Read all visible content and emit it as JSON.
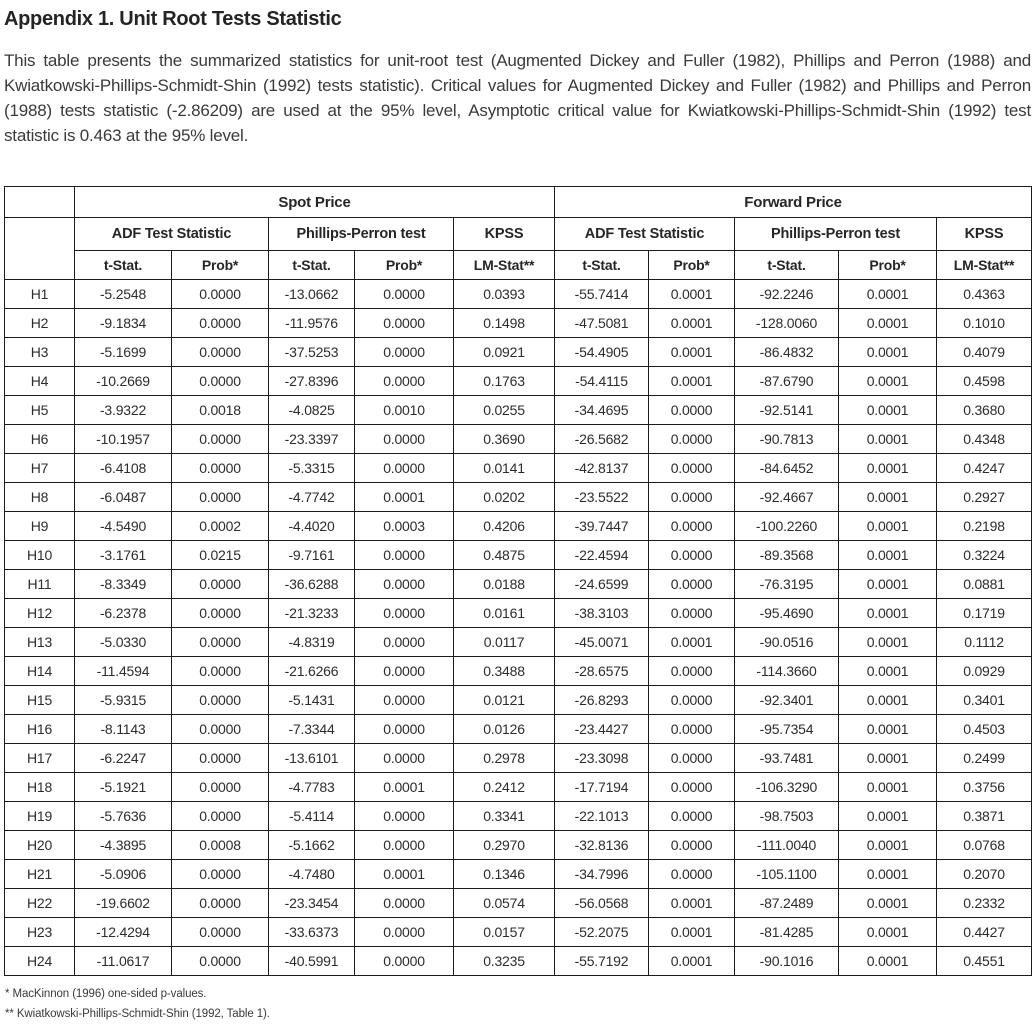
{
  "title": "Appendix 1. Unit Root Tests Statistic",
  "description": "This table presents the summarized statistics for unit-root test (Augmented Dickey and Fuller (1982), Phillips and Perron (1988) and Kwiatkowski-Phillips-Schmidt-Shin (1992) tests statistic). Critical values for Augmented Dickey and Fuller (1982) and Phillips and Perron (1988) tests statistic (-2.86209) are used at the 95% level, Asymptotic critical value for Kwiatkowski-Phillips-Schmidt-Shin (1992) test statistic is 0.463 at the 95% level.",
  "table": {
    "group_headers": [
      "Spot Price",
      "Forward Price"
    ],
    "test_headers": [
      "ADF Test Statistic",
      "Phillips-Perron test",
      "KPSS"
    ],
    "stat_headers": [
      "t-Stat.",
      "Prob*",
      "t-Stat.",
      "Prob*",
      "LM-Stat**"
    ],
    "rows": [
      {
        "label": "H1",
        "spot": [
          "-5.2548",
          "0.0000",
          "-13.0662",
          "0.0000",
          "0.0393"
        ],
        "forward": [
          "-55.7414",
          "0.0001",
          "-92.2246",
          "0.0001",
          "0.4363"
        ]
      },
      {
        "label": "H2",
        "spot": [
          "-9.1834",
          "0.0000",
          "-11.9576",
          "0.0000",
          "0.1498"
        ],
        "forward": [
          "-47.5081",
          "0.0001",
          "-128.0060",
          "0.0001",
          "0.1010"
        ]
      },
      {
        "label": "H3",
        "spot": [
          "-5.1699",
          "0.0000",
          "-37.5253",
          "0.0000",
          "0.0921"
        ],
        "forward": [
          "-54.4905",
          "0.0001",
          "-86.4832",
          "0.0001",
          "0.4079"
        ]
      },
      {
        "label": "H4",
        "spot": [
          "-10.2669",
          "0.0000",
          "-27.8396",
          "0.0000",
          "0.1763"
        ],
        "forward": [
          "-54.4115",
          "0.0001",
          "-87.6790",
          "0.0001",
          "0.4598"
        ]
      },
      {
        "label": "H5",
        "spot": [
          "-3.9322",
          "0.0018",
          "-4.0825",
          "0.0010",
          "0.0255"
        ],
        "forward": [
          "-34.4695",
          "0.0000",
          "-92.5141",
          "0.0001",
          "0.3680"
        ]
      },
      {
        "label": "H6",
        "spot": [
          "-10.1957",
          "0.0000",
          "-23.3397",
          "0.0000",
          "0.3690"
        ],
        "forward": [
          "-26.5682",
          "0.0000",
          "-90.7813",
          "0.0001",
          "0.4348"
        ]
      },
      {
        "label": "H7",
        "spot": [
          "-6.4108",
          "0.0000",
          "-5.3315",
          "0.0000",
          "0.0141"
        ],
        "forward": [
          "-42.8137",
          "0.0000",
          "-84.6452",
          "0.0001",
          "0.4247"
        ]
      },
      {
        "label": "H8",
        "spot": [
          "-6.0487",
          "0.0000",
          "-4.7742",
          "0.0001",
          "0.0202"
        ],
        "forward": [
          "-23.5522",
          "0.0000",
          "-92.4667",
          "0.0001",
          "0.2927"
        ]
      },
      {
        "label": "H9",
        "spot": [
          "-4.5490",
          "0.0002",
          "-4.4020",
          "0.0003",
          "0.4206"
        ],
        "forward": [
          "-39.7447",
          "0.0000",
          "-100.2260",
          "0.0001",
          "0.2198"
        ]
      },
      {
        "label": "H10",
        "spot": [
          "-3.1761",
          "0.0215",
          "-9.7161",
          "0.0000",
          "0.4875"
        ],
        "forward": [
          "-22.4594",
          "0.0000",
          "-89.3568",
          "0.0001",
          "0.3224"
        ]
      },
      {
        "label": "H11",
        "spot": [
          "-8.3349",
          "0.0000",
          "-36.6288",
          "0.0000",
          "0.0188"
        ],
        "forward": [
          "-24.6599",
          "0.0000",
          "-76.3195",
          "0.0001",
          "0.0881"
        ]
      },
      {
        "label": "H12",
        "spot": [
          "-6.2378",
          "0.0000",
          "-21.3233",
          "0.0000",
          "0.0161"
        ],
        "forward": [
          "-38.3103",
          "0.0000",
          "-95.4690",
          "0.0001",
          "0.1719"
        ]
      },
      {
        "label": "H13",
        "spot": [
          "-5.0330",
          "0.0000",
          "-4.8319",
          "0.0000",
          "0.0117"
        ],
        "forward": [
          "-45.0071",
          "0.0001",
          "-90.0516",
          "0.0001",
          "0.1112"
        ]
      },
      {
        "label": "H14",
        "spot": [
          "-11.4594",
          "0.0000",
          "-21.6266",
          "0.0000",
          "0.3488"
        ],
        "forward": [
          "-28.6575",
          "0.0000",
          "-114.3660",
          "0.0001",
          "0.0929"
        ]
      },
      {
        "label": "H15",
        "spot": [
          "-5.9315",
          "0.0000",
          "-5.1431",
          "0.0000",
          "0.0121"
        ],
        "forward": [
          "-26.8293",
          "0.0000",
          "-92.3401",
          "0.0001",
          "0.3401"
        ]
      },
      {
        "label": "H16",
        "spot": [
          "-8.1143",
          "0.0000",
          "-7.3344",
          "0.0000",
          "0.0126"
        ],
        "forward": [
          "-23.4427",
          "0.0000",
          "-95.7354",
          "0.0001",
          "0.4503"
        ]
      },
      {
        "label": "H17",
        "spot": [
          "-6.2247",
          "0.0000",
          "-13.6101",
          "0.0000",
          "0.2978"
        ],
        "forward": [
          "-23.3098",
          "0.0000",
          "-93.7481",
          "0.0001",
          "0.2499"
        ]
      },
      {
        "label": "H18",
        "spot": [
          "-5.1921",
          "0.0000",
          "-4.7783",
          "0.0001",
          "0.2412"
        ],
        "forward": [
          "-17.7194",
          "0.0000",
          "-106.3290",
          "0.0001",
          "0.3756"
        ]
      },
      {
        "label": "H19",
        "spot": [
          "-5.7636",
          "0.0000",
          "-5.4114",
          "0.0000",
          "0.3341"
        ],
        "forward": [
          "-22.1013",
          "0.0000",
          "-98.7503",
          "0.0001",
          "0.3871"
        ]
      },
      {
        "label": "H20",
        "spot": [
          "-4.3895",
          "0.0008",
          "-5.1662",
          "0.0000",
          "0.2970"
        ],
        "forward": [
          "-32.8136",
          "0.0000",
          "-111.0040",
          "0.0001",
          "0.0768"
        ]
      },
      {
        "label": "H21",
        "spot": [
          "-5.0906",
          "0.0000",
          "-4.7480",
          "0.0001",
          "0.1346"
        ],
        "forward": [
          "-34.7996",
          "0.0000",
          "-105.1100",
          "0.0001",
          "0.2070"
        ]
      },
      {
        "label": "H22",
        "spot": [
          "-19.6602",
          "0.0000",
          "-23.3454",
          "0.0000",
          "0.0574"
        ],
        "forward": [
          "-56.0568",
          "0.0001",
          "-87.2489",
          "0.0001",
          "0.2332"
        ]
      },
      {
        "label": "H23",
        "spot": [
          "-12.4294",
          "0.0000",
          "-33.6373",
          "0.0000",
          "0.0157"
        ],
        "forward": [
          "-52.2075",
          "0.0001",
          "-81.4285",
          "0.0001",
          "0.4427"
        ]
      },
      {
        "label": "H24",
        "spot": [
          "-11.0617",
          "0.0000",
          "-40.5991",
          "0.0000",
          "0.3235"
        ],
        "forward": [
          "-55.7192",
          "0.0001",
          "-90.1016",
          "0.0001",
          "0.4551"
        ]
      }
    ]
  },
  "footnotes": [
    "* MacKinnon (1996) one-sided p-values.",
    "** Kwiatkowski-Phillips-Schmidt-Shin (1992, Table 1)."
  ]
}
